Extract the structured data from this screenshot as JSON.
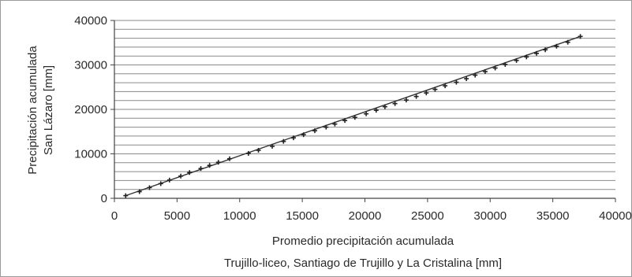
{
  "chart_data": {
    "type": "scatter",
    "title": "",
    "xlabel_lines": [
      "Promedio precipitación acumulada",
      "Trujillo-liceo, Santiago de Trujillo y La Cristalina [mm]"
    ],
    "ylabel_lines": [
      "Precipitación acumulada",
      "San Lázaro [mm]"
    ],
    "xlim": [
      0,
      40000
    ],
    "ylim": [
      0,
      40000
    ],
    "xticks": [
      0,
      5000,
      10000,
      15000,
      20000,
      25000,
      30000,
      35000,
      40000
    ],
    "yticks": [
      0,
      10000,
      20000,
      30000,
      40000
    ],
    "grid_y_step": 2000,
    "grid": true,
    "legend": "none",
    "trendline": {
      "x": [
        900,
        37200
      ],
      "y": [
        600,
        36400
      ]
    },
    "marker_color": "#222222",
    "line_color": "#333333",
    "grid_color": "#8a8a8a",
    "points": [
      [
        900,
        600
      ],
      [
        2000,
        1500
      ],
      [
        2800,
        2400
      ],
      [
        3700,
        3300
      ],
      [
        4400,
        4100
      ],
      [
        5300,
        5000
      ],
      [
        6000,
        5800
      ],
      [
        6900,
        6700
      ],
      [
        7600,
        7400
      ],
      [
        8300,
        8100
      ],
      [
        9200,
        8900
      ],
      [
        10700,
        10100
      ],
      [
        11500,
        10800
      ],
      [
        12600,
        11700
      ],
      [
        13500,
        12800
      ],
      [
        14300,
        13600
      ],
      [
        15100,
        14300
      ],
      [
        16000,
        15200
      ],
      [
        16900,
        16000
      ],
      [
        17600,
        16700
      ],
      [
        18400,
        17500
      ],
      [
        19200,
        18200
      ],
      [
        20100,
        19000
      ],
      [
        20900,
        19800
      ],
      [
        21600,
        20600
      ],
      [
        22400,
        21300
      ],
      [
        23300,
        22100
      ],
      [
        24100,
        22900
      ],
      [
        24900,
        23700
      ],
      [
        25600,
        24500
      ],
      [
        26400,
        25300
      ],
      [
        27300,
        26100
      ],
      [
        28100,
        26900
      ],
      [
        28800,
        27700
      ],
      [
        29600,
        28500
      ],
      [
        30400,
        29300
      ],
      [
        31200,
        30100
      ],
      [
        32100,
        31000
      ],
      [
        32900,
        31800
      ],
      [
        33700,
        32600
      ],
      [
        34400,
        33400
      ],
      [
        35300,
        34200
      ],
      [
        36200,
        35100
      ],
      [
        37200,
        36400
      ]
    ]
  }
}
